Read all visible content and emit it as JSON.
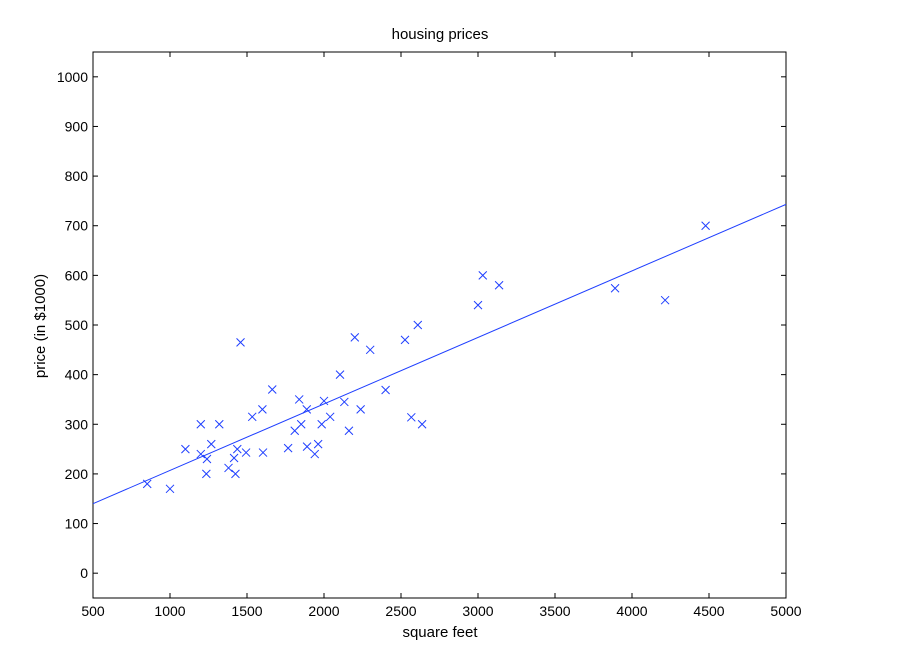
{
  "chart_data": {
    "type": "scatter",
    "title": "housing prices",
    "xlabel": "square feet",
    "ylabel": "price (in $1000)",
    "xlim": [
      500,
      5000
    ],
    "ylim": [
      -50,
      1050
    ],
    "xticks": [
      500,
      1000,
      1500,
      2000,
      2500,
      3000,
      3500,
      4000,
      4500,
      5000
    ],
    "yticks": [
      0,
      100,
      200,
      300,
      400,
      500,
      600,
      700,
      800,
      900,
      1000
    ],
    "grid": false,
    "marker": "x",
    "color": "#1f3fff",
    "series": [
      {
        "points": [
          [
            852,
            180
          ],
          [
            1000,
            170
          ],
          [
            1100,
            250
          ],
          [
            1200,
            300
          ],
          [
            1200,
            240
          ],
          [
            1236,
            200
          ],
          [
            1240,
            230
          ],
          [
            1268,
            260
          ],
          [
            1320,
            300
          ],
          [
            1380,
            212
          ],
          [
            1416,
            232
          ],
          [
            1425,
            200
          ],
          [
            1437,
            250
          ],
          [
            1458,
            465
          ],
          [
            1494,
            243
          ],
          [
            1534,
            315
          ],
          [
            1600,
            330
          ],
          [
            1604,
            243
          ],
          [
            1664,
            370
          ],
          [
            1767,
            252
          ],
          [
            1810,
            287
          ],
          [
            1839,
            350
          ],
          [
            1852,
            300
          ],
          [
            1888,
            330
          ],
          [
            1890,
            255
          ],
          [
            1940,
            240
          ],
          [
            1962,
            260
          ],
          [
            1985,
            300
          ],
          [
            2000,
            347
          ],
          [
            2040,
            315
          ],
          [
            2104,
            400
          ],
          [
            2132,
            345
          ],
          [
            2162,
            287
          ],
          [
            2200,
            475
          ],
          [
            2238,
            330
          ],
          [
            2300,
            450
          ],
          [
            2400,
            369
          ],
          [
            2526,
            470
          ],
          [
            2567,
            314
          ],
          [
            2609,
            500
          ],
          [
            2637,
            300
          ],
          [
            3000,
            540
          ],
          [
            3031,
            600
          ],
          [
            3137,
            580
          ],
          [
            3890,
            574
          ],
          [
            4215,
            550
          ],
          [
            4478,
            700
          ]
        ]
      }
    ],
    "fit_line": {
      "x": [
        500,
        5000
      ],
      "y": [
        140,
        743
      ]
    }
  }
}
